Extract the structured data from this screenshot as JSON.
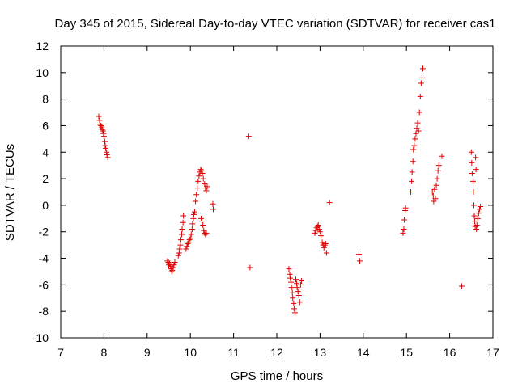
{
  "chart_data": {
    "type": "scatter",
    "title": "Day 345 of 2015, Sidereal Day-to-day VTEC variation (SDTVAR) for receiver cas1",
    "xlabel": "GPS time / hours",
    "ylabel": "SDTVAR / TECUs",
    "xlim": [
      7,
      17
    ],
    "ylim": [
      -10,
      12
    ],
    "xticks": [
      7,
      8,
      9,
      10,
      11,
      12,
      13,
      14,
      15,
      16,
      17
    ],
    "yticks": [
      -10,
      -8,
      -6,
      -4,
      -2,
      0,
      2,
      4,
      6,
      8,
      10,
      12
    ],
    "xtick_labels": [
      "7",
      "8",
      "9",
      "10",
      "11",
      "12",
      "13",
      "14",
      "15",
      "16",
      "17"
    ],
    "ytick_labels": [
      "-10",
      "-8",
      "-6",
      "-4",
      "-2",
      "0",
      "2",
      "4",
      "6",
      "8",
      "10",
      "12"
    ],
    "marker": "+",
    "marker_color": "#e00000",
    "grid": false,
    "series": [
      {
        "name": "SDTVAR",
        "points": [
          [
            7.88,
            6.7
          ],
          [
            7.9,
            6.4
          ],
          [
            7.91,
            6.1
          ],
          [
            7.93,
            6.0
          ],
          [
            7.95,
            5.9
          ],
          [
            7.96,
            5.7
          ],
          [
            7.98,
            5.6
          ],
          [
            7.99,
            5.4
          ],
          [
            8.0,
            5.2
          ],
          [
            8.02,
            4.8
          ],
          [
            8.03,
            4.5
          ],
          [
            8.04,
            4.3
          ],
          [
            8.06,
            4.0
          ],
          [
            8.07,
            3.8
          ],
          [
            8.09,
            3.6
          ],
          [
            9.47,
            -4.2
          ],
          [
            9.49,
            -4.3
          ],
          [
            9.5,
            -4.5
          ],
          [
            9.52,
            -4.4
          ],
          [
            9.54,
            -4.6
          ],
          [
            9.55,
            -4.8
          ],
          [
            9.57,
            -5.0
          ],
          [
            9.58,
            -4.9
          ],
          [
            9.6,
            -4.7
          ],
          [
            9.62,
            -4.5
          ],
          [
            9.64,
            -4.3
          ],
          [
            9.72,
            -3.8
          ],
          [
            9.74,
            -3.6
          ],
          [
            9.75,
            -3.3
          ],
          [
            9.77,
            -3.0
          ],
          [
            9.78,
            -2.6
          ],
          [
            9.8,
            -2.2
          ],
          [
            9.81,
            -1.8
          ],
          [
            9.83,
            -1.3
          ],
          [
            9.84,
            -0.8
          ],
          [
            9.9,
            -3.3
          ],
          [
            9.92,
            -3.1
          ],
          [
            9.94,
            -2.9
          ],
          [
            9.96,
            -2.8
          ],
          [
            9.98,
            -2.6
          ],
          [
            10.0,
            -2.5
          ],
          [
            10.02,
            -2.2
          ],
          [
            10.04,
            -1.8
          ],
          [
            10.05,
            -1.4
          ],
          [
            10.07,
            -1.0
          ],
          [
            10.08,
            -0.7
          ],
          [
            10.1,
            -0.5
          ],
          [
            10.12,
            0.3
          ],
          [
            10.14,
            0.8
          ],
          [
            10.16,
            1.3
          ],
          [
            10.18,
            1.8
          ],
          [
            10.2,
            2.2
          ],
          [
            10.22,
            2.5
          ],
          [
            10.24,
            2.7
          ],
          [
            10.26,
            2.6
          ],
          [
            10.28,
            2.4
          ],
          [
            10.3,
            2.0
          ],
          [
            10.25,
            -1.0
          ],
          [
            10.27,
            -1.2
          ],
          [
            10.29,
            -1.5
          ],
          [
            10.31,
            -1.9
          ],
          [
            10.33,
            -2.1
          ],
          [
            10.35,
            -2.2
          ],
          [
            10.37,
            -2.1
          ],
          [
            10.33,
            1.6
          ],
          [
            10.35,
            1.3
          ],
          [
            10.37,
            1.1
          ],
          [
            10.39,
            1.4
          ],
          [
            10.52,
            0.1
          ],
          [
            10.53,
            -0.3
          ],
          [
            11.35,
            5.2
          ],
          [
            11.38,
            -4.7
          ],
          [
            12.28,
            -4.8
          ],
          [
            12.3,
            -5.2
          ],
          [
            12.31,
            -5.5
          ],
          [
            12.33,
            -5.8
          ],
          [
            12.34,
            -6.2
          ],
          [
            12.36,
            -6.6
          ],
          [
            12.37,
            -7.0
          ],
          [
            12.39,
            -7.4
          ],
          [
            12.4,
            -7.8
          ],
          [
            12.42,
            -8.1
          ],
          [
            12.44,
            -5.6
          ],
          [
            12.46,
            -5.9
          ],
          [
            12.47,
            -6.2
          ],
          [
            12.49,
            -6.5
          ],
          [
            12.51,
            -6.8
          ],
          [
            12.53,
            -7.3
          ],
          [
            12.55,
            -6.0
          ],
          [
            12.57,
            -5.7
          ],
          [
            12.88,
            -2.1
          ],
          [
            12.9,
            -1.9
          ],
          [
            12.92,
            -1.7
          ],
          [
            12.94,
            -1.6
          ],
          [
            12.96,
            -1.5
          ],
          [
            12.98,
            -1.8
          ],
          [
            13.0,
            -2.0
          ],
          [
            13.02,
            -2.3
          ],
          [
            13.05,
            -2.8
          ],
          [
            13.07,
            -3.0
          ],
          [
            13.09,
            -3.2
          ],
          [
            13.11,
            -3.0
          ],
          [
            13.13,
            -2.9
          ],
          [
            13.15,
            -3.6
          ],
          [
            13.22,
            0.2
          ],
          [
            13.9,
            -3.7
          ],
          [
            13.92,
            -4.2
          ],
          [
            14.92,
            -2.1
          ],
          [
            14.94,
            -1.8
          ],
          [
            14.95,
            -1.1
          ],
          [
            14.97,
            -0.4
          ],
          [
            14.98,
            -0.2
          ],
          [
            15.1,
            1.0
          ],
          [
            15.12,
            1.8
          ],
          [
            15.13,
            2.5
          ],
          [
            15.15,
            3.3
          ],
          [
            15.16,
            4.2
          ],
          [
            15.18,
            4.5
          ],
          [
            15.2,
            5.0
          ],
          [
            15.22,
            5.4
          ],
          [
            15.24,
            5.8
          ],
          [
            15.26,
            6.2
          ],
          [
            15.28,
            5.6
          ],
          [
            15.3,
            7.0
          ],
          [
            15.32,
            8.2
          ],
          [
            15.34,
            9.2
          ],
          [
            15.36,
            9.6
          ],
          [
            15.38,
            10.3
          ],
          [
            15.6,
            1.0
          ],
          [
            15.62,
            0.7
          ],
          [
            15.63,
            0.3
          ],
          [
            15.65,
            1.2
          ],
          [
            15.67,
            0.5
          ],
          [
            15.69,
            1.5
          ],
          [
            15.71,
            2.0
          ],
          [
            15.73,
            2.6
          ],
          [
            15.75,
            3.0
          ],
          [
            15.82,
            3.7
          ],
          [
            16.28,
            -6.1
          ],
          [
            16.5,
            4.0
          ],
          [
            16.51,
            3.2
          ],
          [
            16.52,
            2.4
          ],
          [
            16.54,
            1.8
          ],
          [
            16.55,
            1.0
          ],
          [
            16.56,
            0.0
          ],
          [
            16.57,
            -0.8
          ],
          [
            16.58,
            -1.2
          ],
          [
            16.59,
            -1.6
          ],
          [
            16.6,
            3.6
          ],
          [
            16.61,
            2.7
          ],
          [
            16.62,
            -1.8
          ],
          [
            16.63,
            -1.5
          ],
          [
            16.65,
            -1.0
          ],
          [
            16.67,
            -0.6
          ],
          [
            16.69,
            -0.3
          ],
          [
            16.71,
            -0.1
          ]
        ]
      }
    ]
  }
}
